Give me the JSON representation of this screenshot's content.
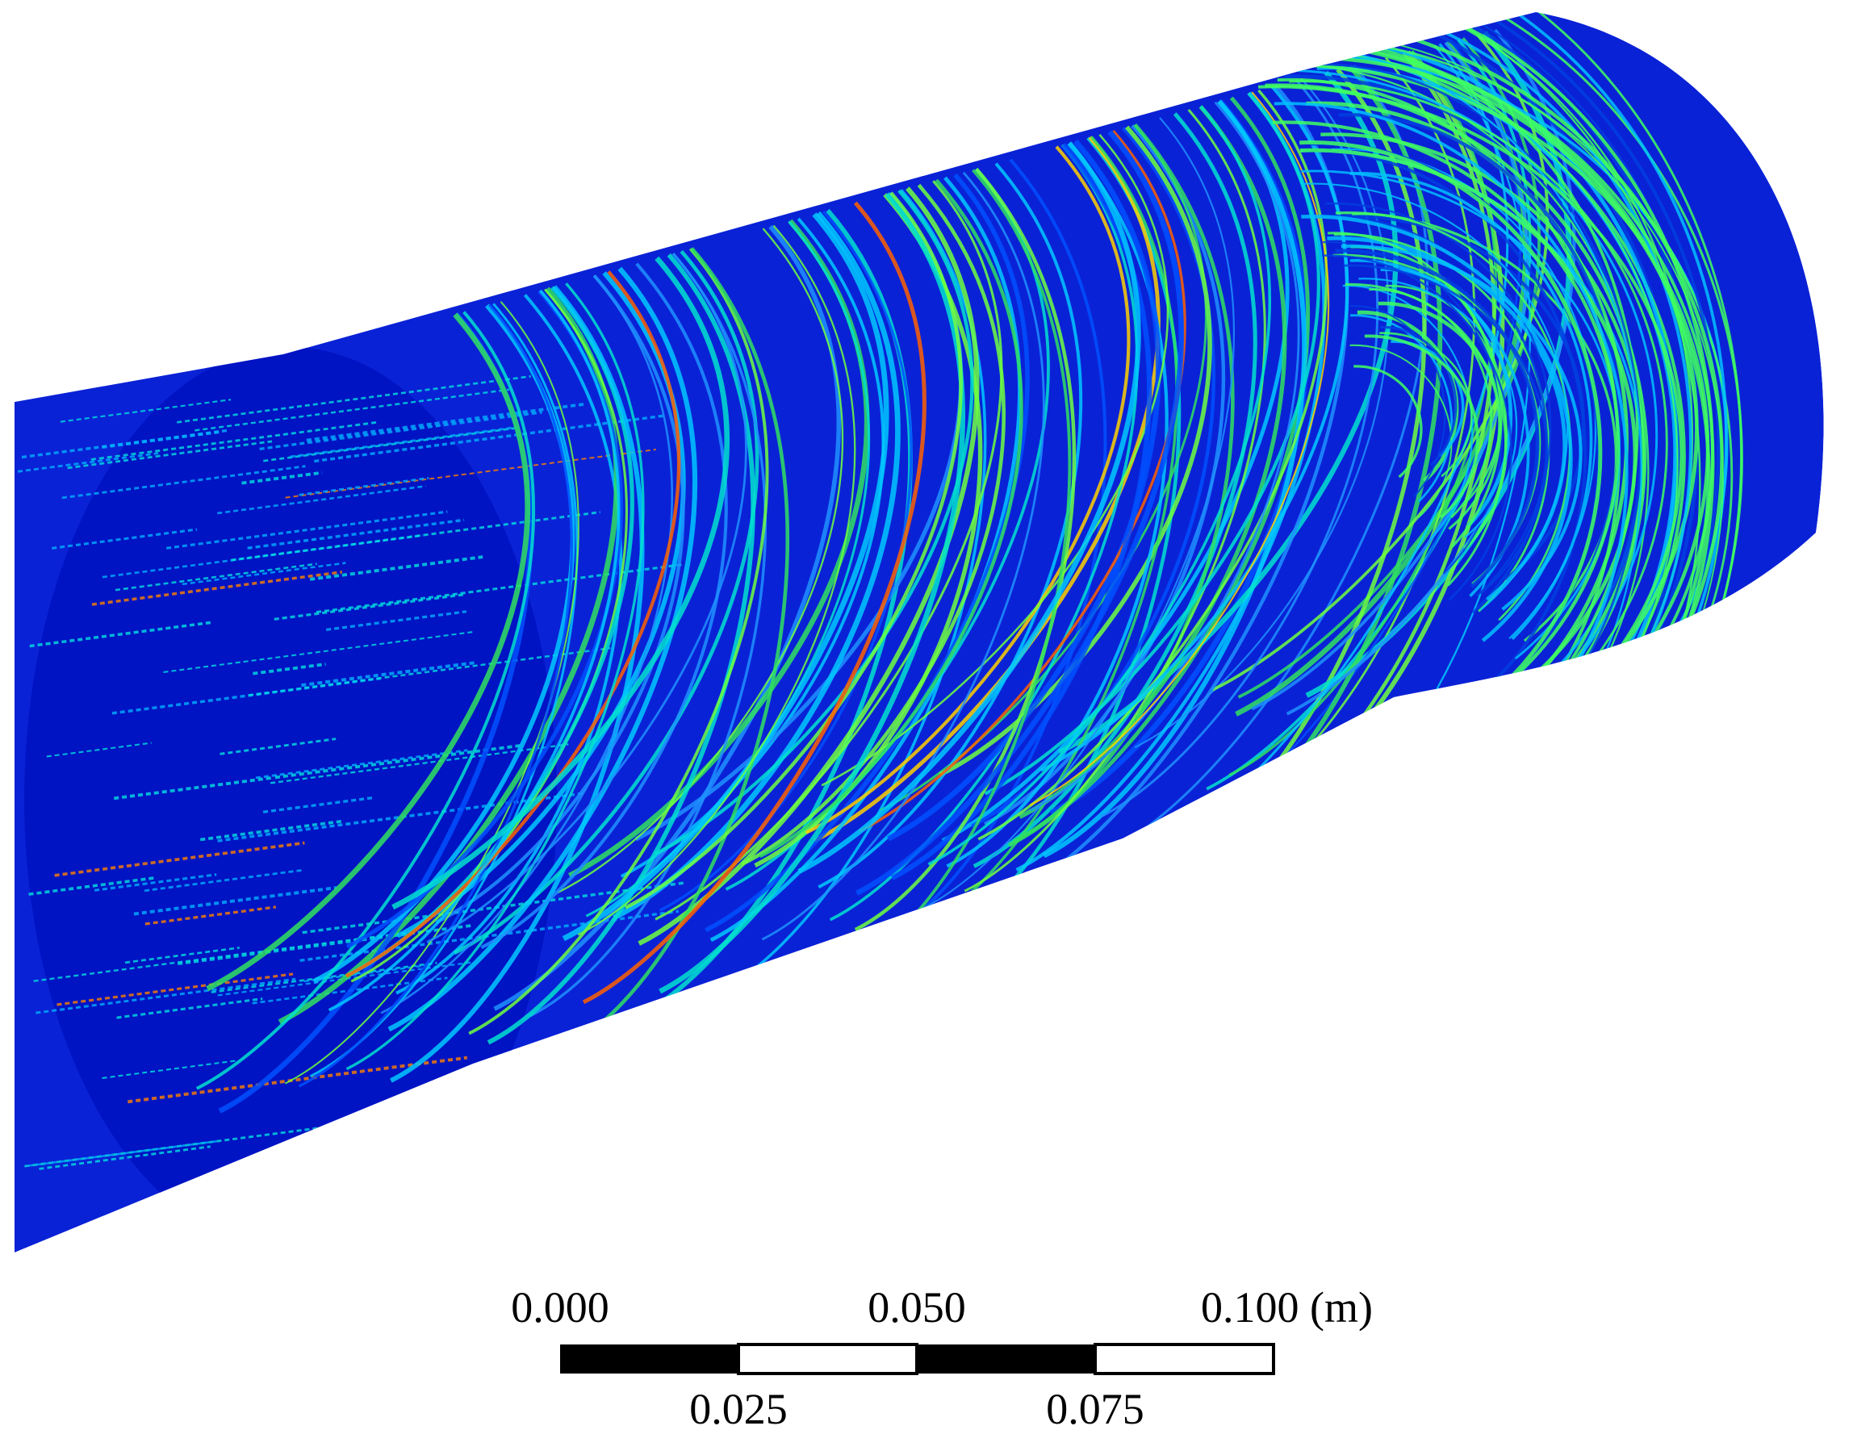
{
  "scale_bar": {
    "top_labels": [
      "0.000",
      "0.050",
      "0.100 (m)"
    ],
    "bottom_labels": [
      "0.025",
      "0.075"
    ]
  }
}
